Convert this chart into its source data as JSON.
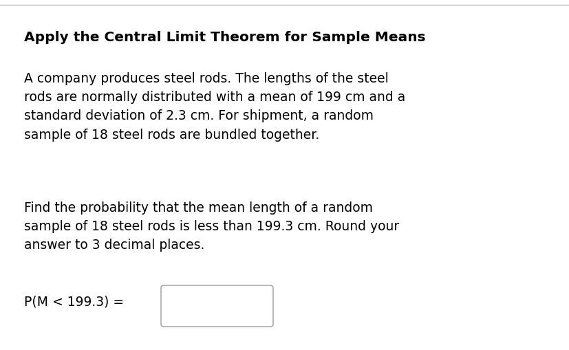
{
  "title": "Apply the Central Limit Theorem for Sample Means",
  "paragraph1": "A company produces steel rods. The lengths of the steel\nrods are normally distributed with a mean of 199 cm and a\nstandard deviation of 2.3 cm. For shipment, a random\nsample of 18 steel rods are bundled together.",
  "paragraph2": "Find the probability that the mean length of a random\nsample of 18 steel rods is less than 199.3 cm. Round your\nanswer to 3 decimal places.",
  "label": "P(M < 199.3) =",
  "background_color": "#ffffff",
  "text_color": "#000000",
  "title_fontsize": 14.5,
  "body_fontsize": 13.5,
  "label_fontsize": 13.5,
  "top_line_color": "#bbbbbb",
  "box_color": "#aaaaaa",
  "font_family": "DejaVu Sans"
}
